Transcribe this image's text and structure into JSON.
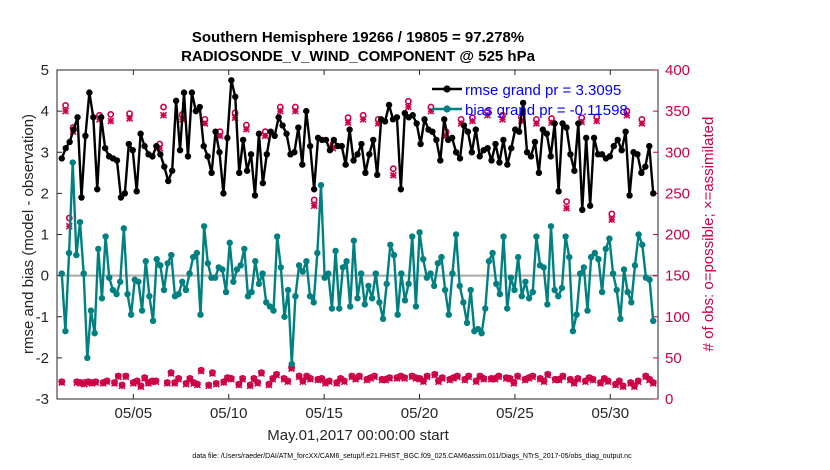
{
  "chart_data": {
    "type": "line",
    "title_line1": "Southern Hemisphere 19266 / 19805 = 97.278%",
    "title_line2": "RADIOSONDE_V_WIND_COMPONENT @ 525 hPa",
    "xlabel": "May.01,2017 00:00:00 start",
    "ylabel": "rmse and bias (model - observation)",
    "y2label": "# of obs: o=possible; ×=assimilated",
    "xlim": [
      0,
      31.5
    ],
    "ylim": [
      -3,
      5
    ],
    "y2lim": [
      0,
      400
    ],
    "xticks": [
      {
        "value": 4,
        "label": "05/05"
      },
      {
        "value": 9,
        "label": "05/10"
      },
      {
        "value": 14,
        "label": "05/15"
      },
      {
        "value": 19,
        "label": "05/20"
      },
      {
        "value": 24,
        "label": "05/25"
      },
      {
        "value": 29,
        "label": "05/30"
      }
    ],
    "yticks": [
      "-3",
      "-2",
      "-1",
      "0",
      "1",
      "2",
      "3",
      "4",
      "5"
    ],
    "y2ticks": [
      "0",
      "50",
      "100",
      "150",
      "200",
      "250",
      "300",
      "350",
      "400"
    ],
    "footer": "data file: /Users/raeder/DAI/ATM_forcXX/CAM6_setup/f.e21.FHIST_BGC.f09_025.CAM6assim.011/Diags_NTrS_2017-05/obs_diag_output.nc",
    "colors": {
      "rmse": "#000000",
      "bias": "#008080",
      "obs": "#cc0044",
      "zero": "#b0b0b0"
    },
    "series": [
      {
        "name": "rmse",
        "legend": "rmse grand pr = 3.3095",
        "values": [
          2.85,
          3.1,
          3.25,
          3.55,
          3.85,
          1.9,
          3.4,
          4.45,
          3.85,
          2.1,
          3.85,
          3.1,
          2.9,
          2.85,
          2.8,
          1.9,
          2.0,
          3.2,
          3.05,
          2.05,
          3.45,
          3.15,
          2.95,
          2.9,
          3.15,
          2.95,
          2.65,
          2.3,
          2.55,
          4.25,
          3.05,
          4.45,
          2.9,
          4.45,
          4.0,
          4.1,
          3.15,
          2.9,
          2.5,
          3.5,
          3.0,
          2.0,
          3.35,
          4.75,
          4.35,
          2.5,
          3.3,
          2.55,
          2.95,
          1.95,
          3.45,
          2.25,
          2.95,
          3.5,
          3.4,
          3.85,
          3.65,
          3.45,
          2.95,
          3.0,
          3.6,
          2.7,
          4.0,
          3.15,
          2.1,
          3.35,
          3.3,
          3.3,
          3.05,
          3.3,
          3.15,
          3.15,
          2.7,
          3.55,
          2.8,
          2.95,
          3.2,
          2.5,
          2.95,
          3.3,
          2.45,
          3.8,
          3.75,
          4.15,
          3.8,
          3.85,
          2.1,
          3.95,
          3.85,
          3.9,
          3.7,
          3.2,
          3.8,
          3.55,
          3.5,
          3.3,
          2.8,
          3.8,
          3.3,
          3.35,
          3.0,
          2.85,
          3.65,
          3.5,
          3.0,
          3.55,
          2.9,
          3.05,
          3.1,
          2.8,
          3.2,
          2.75,
          3.3,
          2.7,
          3.1,
          3.55,
          3.5,
          4.2,
          3.0,
          2.9,
          3.25,
          2.5,
          3.55,
          3.45,
          2.9,
          3.7,
          2.05,
          3.7,
          3.6,
          2.95,
          2.55,
          3.7,
          1.6,
          3.35,
          1.7,
          3.35,
          2.95,
          2.95,
          2.85,
          2.9,
          3.15,
          3.3,
          3.05,
          3.5,
          1.95,
          3.0,
          2.95,
          2.5,
          2.65,
          3.15,
          2.0
        ]
      },
      {
        "name": "bias",
        "legend": "bias grand pr = -0.11598",
        "values": [
          0.05,
          -1.35,
          0.55,
          2.75,
          0.5,
          1.3,
          0.05,
          -2.0,
          -0.85,
          -1.4,
          0.65,
          -0.55,
          0.95,
          -0.05,
          -0.35,
          -0.45,
          -0.15,
          1.15,
          -0.45,
          -0.95,
          -0.1,
          -0.15,
          -0.85,
          0.35,
          -0.5,
          -1.1,
          0.4,
          0.25,
          -0.35,
          0.3,
          0.5,
          -0.5,
          -0.45,
          -0.15,
          -0.35,
          0.05,
          0.45,
          0.55,
          -0.95,
          1.2,
          0.3,
          -0.05,
          -0.05,
          0.2,
          0.15,
          -0.4,
          0.8,
          -0.15,
          0.15,
          0.25,
          0.65,
          -0.5,
          -0.4,
          0.35,
          -0.2,
          0.05,
          -0.65,
          -0.75,
          -0.85,
          0.95,
          0.2,
          -1.0,
          -0.35,
          -2.15,
          -0.5,
          0.25,
          0.1,
          0.35,
          -0.5,
          -0.65,
          0.55,
          2.2,
          -0.05,
          0.05,
          -0.8,
          0.6,
          -0.8,
          0.2,
          0.35,
          -0.75,
          0.85,
          -0.55,
          0.05,
          -0.7,
          -0.25,
          -0.55,
          0.05,
          -0.65,
          -1.05,
          -0.2,
          0.75,
          0.5,
          -0.95,
          0.05,
          -0.6,
          -0.2,
          0.95,
          -0.75,
          1.05,
          0.4,
          -0.05,
          0.05,
          -0.25,
          0.3,
          0.45,
          -0.35,
          -0.95,
          0.05,
          1.0,
          -0.25,
          -0.65,
          -1.15,
          -0.35,
          -1.35,
          -1.3,
          -1.4,
          -0.8,
          0.35,
          0.55,
          -0.2,
          -0.45,
          0.95,
          -0.8,
          -0.05,
          -0.35,
          0.45,
          -0.5,
          -0.15,
          -0.55,
          -0.4,
          0.95,
          0.25,
          0.2,
          -0.7,
          1.2,
          -0.35,
          -0.5,
          -0.3,
          0.95,
          0.45,
          -1.35,
          -0.95,
          0.05,
          0.2,
          -0.85,
          0.45,
          0.55,
          0.4,
          -0.4,
          0.65,
          0.9,
          0.05,
          -0.35,
          -1.05,
          0.15,
          -0.4,
          -0.65,
          0.25,
          1.0,
          0.75,
          -0.05,
          -0.1,
          -1.1
        ]
      },
      {
        "name": "obs-possible",
        "marker": "o",
        "values": [
          21,
          357,
          220,
          330,
          21,
          20,
          20,
          21,
          20,
          21,
          345,
          20,
          22,
          346,
          20,
          28,
          17,
          28,
          347,
          20,
          22,
          16,
          26,
          20,
          22,
          22,
          310,
          355,
          20,
          32,
          20,
          25,
          346,
          19,
          25,
          20,
          18,
          35,
          340,
          17,
          32,
          19,
          325,
          21,
          26,
          25,
          348,
          18,
          25,
          333,
          17,
          25,
          20,
          32,
          325,
          18,
          25,
          30,
          355,
          25,
          22,
          38,
          355,
          28,
          22,
          28,
          25,
          242,
          24,
          25,
          20,
          22,
          310,
          20,
          25,
          22,
          342,
          28,
          25,
          28,
          345,
          24,
          26,
          28,
          340,
          24,
          24,
          26,
          280,
          26,
          28,
          26,
          362,
          28,
          26,
          25,
          22,
          28,
          355,
          30,
          22,
          26,
          325,
          24,
          26,
          28,
          340,
          24,
          28,
          342,
          22,
          28,
          25,
          350,
          25,
          25,
          28,
          345,
          26,
          25,
          20,
          28,
          343,
          24,
          26,
          28,
          340,
          25,
          22,
          30,
          341,
          24,
          24,
          28,
          240,
          24,
          20,
          25,
          342,
          22,
          26,
          24,
          343,
          20,
          25,
          22,
          225,
          18,
          22,
          16,
          350,
          20,
          16,
          22,
          340,
          28,
          24,
          20
        ]
      },
      {
        "name": "obs-assimilated",
        "marker": "x",
        "values": [
          20,
          350,
          210,
          325,
          20,
          19,
          18,
          20,
          19,
          20,
          340,
          19,
          21,
          338,
          19,
          27,
          16,
          27,
          341,
          19,
          21,
          15,
          25,
          19,
          21,
          21,
          305,
          345,
          19,
          31,
          19,
          24,
          340,
          18,
          24,
          19,
          17,
          34,
          335,
          16,
          31,
          18,
          320,
          20,
          25,
          24,
          342,
          17,
          24,
          328,
          16,
          24,
          19,
          31,
          320,
          17,
          24,
          29,
          350,
          24,
          21,
          37,
          350,
          27,
          21,
          27,
          24,
          235,
          23,
          24,
          19,
          21,
          305,
          19,
          24,
          21,
          336,
          27,
          24,
          27,
          340,
          23,
          25,
          27,
          335,
          23,
          23,
          25,
          272,
          25,
          27,
          25,
          355,
          27,
          25,
          24,
          21,
          27,
          350,
          29,
          21,
          25,
          320,
          23,
          25,
          27,
          335,
          23,
          27,
          338,
          21,
          27,
          24,
          345,
          24,
          24,
          27,
          340,
          25,
          24,
          19,
          27,
          338,
          23,
          25,
          27,
          335,
          24,
          21,
          29,
          336,
          23,
          23,
          27,
          232,
          23,
          19,
          24,
          337,
          21,
          25,
          23,
          338,
          19,
          24,
          21,
          218,
          17,
          21,
          15,
          345,
          19,
          15,
          21,
          335,
          27,
          23,
          19
        ]
      }
    ]
  }
}
